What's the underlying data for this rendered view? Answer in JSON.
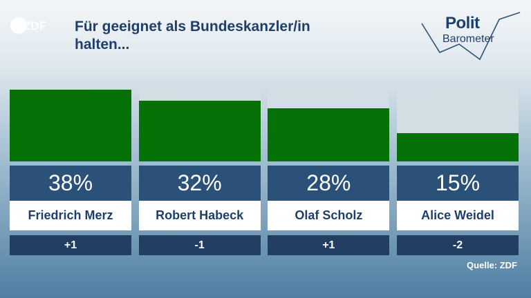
{
  "header": {
    "title_line1": "Für geeignet als Bundeskanzler/in",
    "title_line2": "halten...",
    "logo_text": "ZDF",
    "brand_word1": "Polit",
    "brand_word2": "Barometer"
  },
  "source": "Quelle: ZDF",
  "chart_data": {
    "type": "bar",
    "title": "Für geeignet als Bundeskanzler/in halten...",
    "categories": [
      "Friedrich Merz",
      "Robert Habeck",
      "Olaf Scholz",
      "Alice Weidel"
    ],
    "series": [
      {
        "values": [
          38,
          32,
          28,
          15
        ]
      }
    ],
    "value_labels": [
      "38%",
      "32%",
      "28%",
      "15%"
    ],
    "changes": [
      "+1",
      "-1",
      "+1",
      "-2"
    ],
    "ylim": [
      0,
      38
    ],
    "grid": false,
    "colors": {
      "bar": "#067106",
      "bar_background": "#d2dde4",
      "value_box": "#2b5178",
      "change_box": "#223e63"
    }
  }
}
